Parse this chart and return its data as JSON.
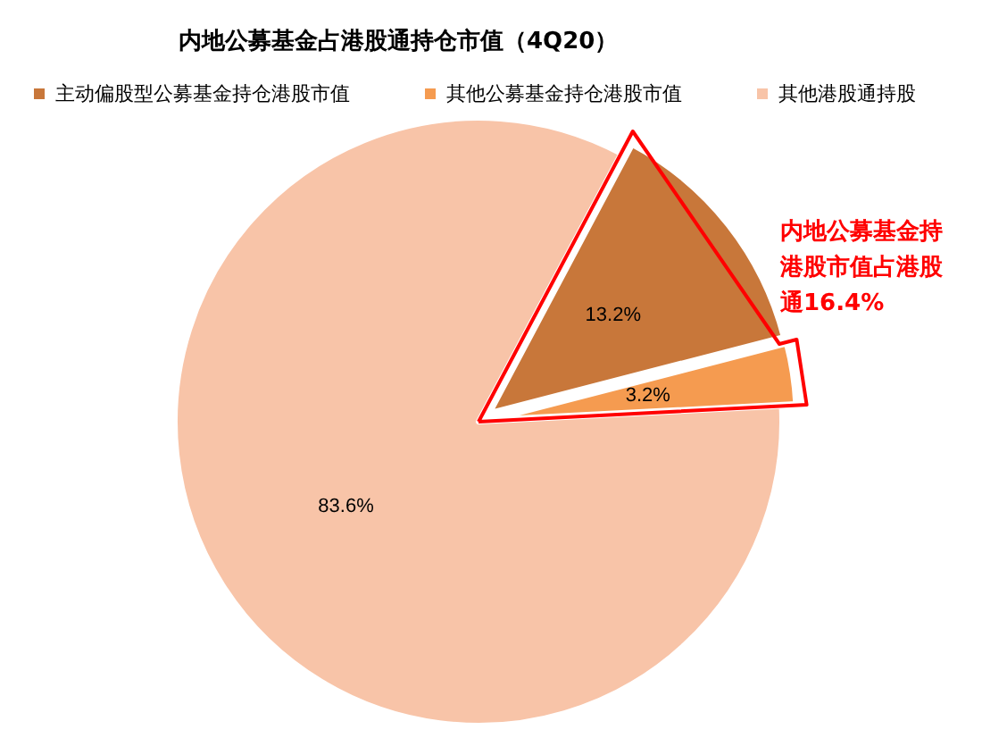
{
  "chart_data": {
    "type": "pie",
    "title": "内地公募基金占港股通持仓市值（4Q20）",
    "categories": [
      "主动偏股型公募基金持仓港股市值",
      "其他公募基金持仓港股市值",
      "其他港股通持股"
    ],
    "values": [
      13.2,
      3.2,
      83.6
    ],
    "value_labels": [
      "13.2%",
      "3.2%",
      "83.6%"
    ],
    "colors": [
      "#c8773a",
      "#f59b50",
      "#f8c4a8"
    ],
    "legend": "top",
    "annotations": [
      "内地公募基金持港股市值占港股通16.4%"
    ]
  }
}
